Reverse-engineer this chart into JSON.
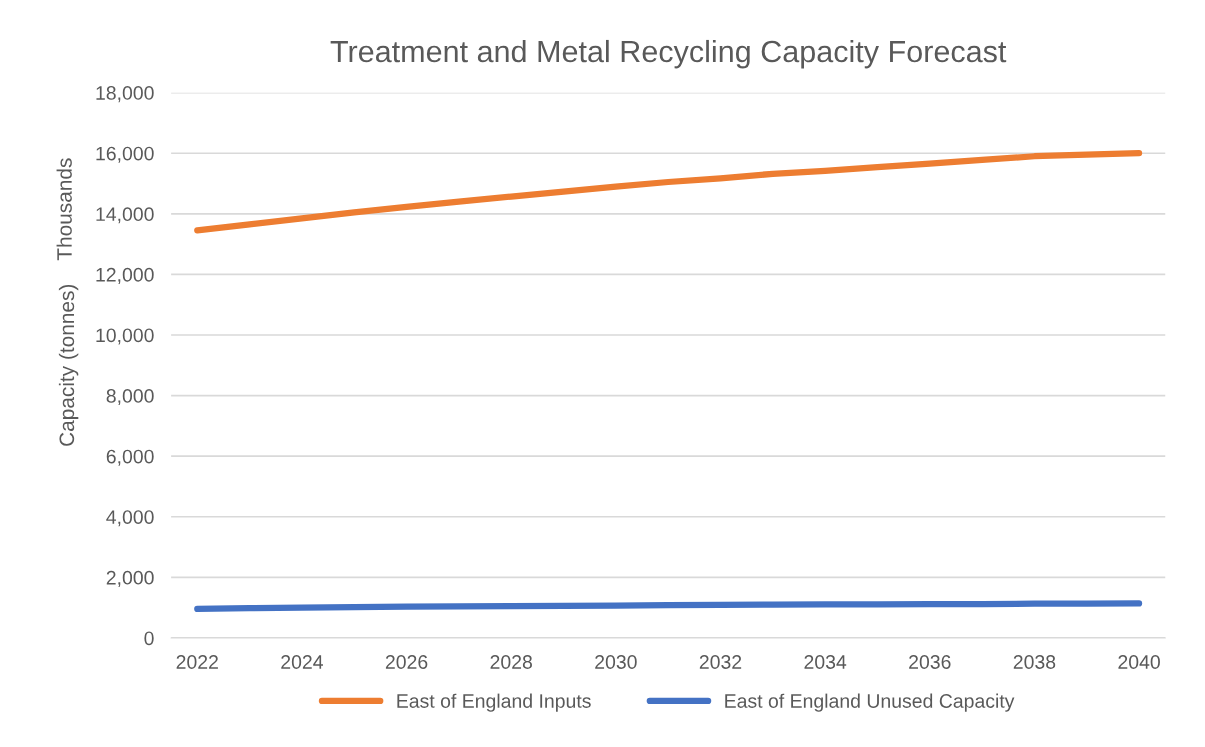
{
  "chart_data": {
    "type": "line",
    "title": "Treatment and Metal Recycling Capacity Forecast",
    "ylabel": "Capacity (tonnes)",
    "annotations": [
      "Thousands"
    ],
    "categories": [
      "2022",
      null,
      "2024",
      null,
      "2026",
      null,
      "2028",
      null,
      "2030",
      null,
      "2032",
      null,
      "2034",
      null,
      "2036",
      null,
      "2038",
      null,
      "2040"
    ],
    "series": [
      {
        "name": "East of England Inputs",
        "color": "#ed7d31",
        "values": [
          13450,
          13650,
          13850,
          14050,
          14230,
          14400,
          14570,
          14730,
          14900,
          15050,
          15170,
          15320,
          15420,
          15540,
          15660,
          15780,
          15900,
          15950,
          16000
        ]
      },
      {
        "name": "East of England Unused Capacity",
        "color": "#4472c4",
        "values": [
          960,
          980,
          1000,
          1020,
          1030,
          1040,
          1050,
          1060,
          1070,
          1080,
          1090,
          1100,
          1105,
          1110,
          1115,
          1120,
          1130,
          1135,
          1140
        ]
      }
    ],
    "ylim": [
      0,
      18000
    ],
    "yticks": [
      {
        "value": 0,
        "label": "0"
      },
      {
        "value": 2000,
        "label": "2,000"
      },
      {
        "value": 4000,
        "label": "4,000"
      },
      {
        "value": 6000,
        "label": "6,000"
      },
      {
        "value": 8000,
        "label": "8,000"
      },
      {
        "value": 10000,
        "label": "10,000"
      },
      {
        "value": 12000,
        "label": "12,000"
      },
      {
        "value": 14000,
        "label": "14,000"
      },
      {
        "value": 16000,
        "label": "16,000"
      },
      {
        "value": 18000,
        "label": "18,000"
      }
    ],
    "grid": "y",
    "legend": "bottom",
    "line_style": "solid",
    "marker": "none"
  }
}
